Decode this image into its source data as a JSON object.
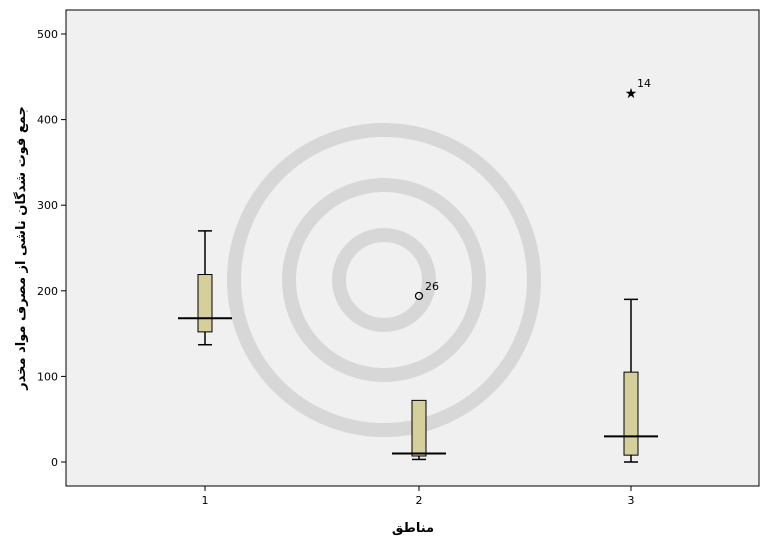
{
  "chart_data": {
    "type": "boxplot",
    "xlabel": "مناطق",
    "ylabel": "جمع فوت شدگان ناشی از مصرف مواد مخدر",
    "ylim": [
      -28,
      530
    ],
    "yticks": [
      0,
      100,
      200,
      300,
      400,
      500
    ],
    "categories": [
      "1",
      "2",
      "3"
    ],
    "boxes": [
      {
        "category": "1",
        "whisker_low": 137,
        "q1": 152,
        "median": 168,
        "q3": 219,
        "whisker_high": 270
      },
      {
        "category": "2",
        "whisker_low": 3,
        "q1": 7,
        "median": 10,
        "q3": 72,
        "whisker_high": 72
      },
      {
        "category": "3",
        "whisker_low": 0,
        "q1": 8,
        "median": 30,
        "q3": 105,
        "whisker_high": 190
      }
    ],
    "outliers": [
      {
        "category": "2",
        "value": 194,
        "label": "26",
        "marker": "circle"
      },
      {
        "category": "3",
        "value": 431,
        "label": "14",
        "marker": "star"
      }
    ],
    "grid": false,
    "colors": {
      "plot_background": "#f0f0f0",
      "box_fill": "#d4cf9b",
      "line": "#000000"
    }
  }
}
